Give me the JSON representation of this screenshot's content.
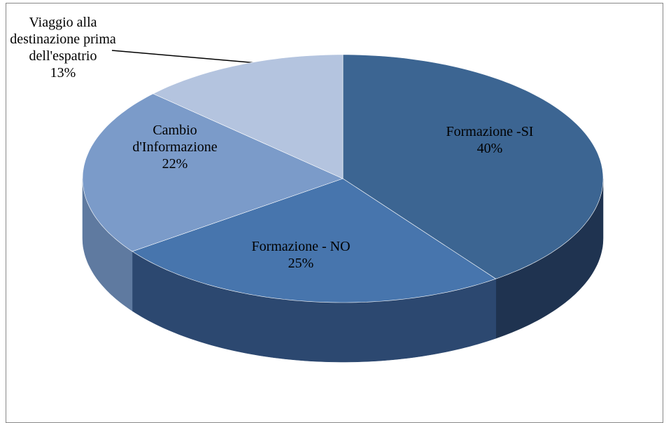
{
  "chart_data": {
    "type": "pie3d",
    "categories": [
      "Formazione -SI",
      "Formazione - NO",
      "Cambio d'Informazione",
      "Viaggio alla destinazione prima dell'espatrio"
    ],
    "values": [
      40,
      25,
      22,
      13
    ],
    "value_labels": [
      "40%",
      "25%",
      "22%",
      "13%"
    ],
    "colors": [
      "#3c6592",
      "#4775ad",
      "#7b9bc9",
      "#b4c4df"
    ],
    "side_colors": [
      "#1f3350",
      "#2c4870",
      "#5f7aa0",
      "#8a9cbb"
    ]
  }
}
